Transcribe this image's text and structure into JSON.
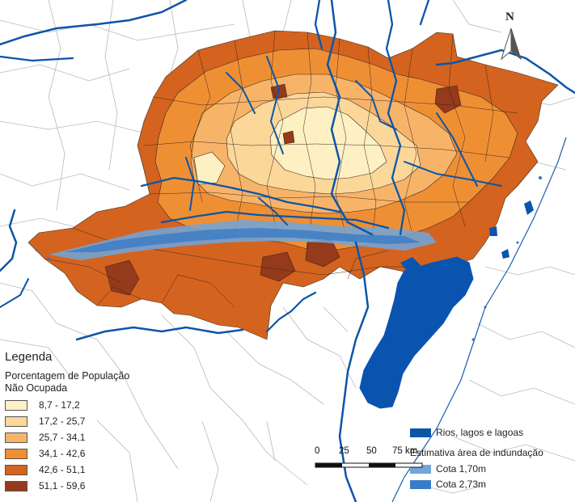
{
  "legend": {
    "title": "Legenda",
    "subtitle_line1": "Porcentagem de População",
    "subtitle_line2": "Não Ocupada",
    "classes": [
      {
        "label": "8,7 - 17,2",
        "color": "#fdf0c3"
      },
      {
        "label": "17,2 - 25,7",
        "color": "#fbd79a"
      },
      {
        "label": "25,7 - 34,1",
        "color": "#f7b469"
      },
      {
        "label": "34,1 - 42,6",
        "color": "#ef8f34"
      },
      {
        "label": "42,6 - 51,1",
        "color": "#d4631f"
      },
      {
        "label": "51,1 - 59,6",
        "color": "#953a1a"
      }
    ]
  },
  "water_legend": {
    "rivers_label": "Rios, lagos e lagoas",
    "rivers_color": "#0b55a8",
    "flood_title": "Estimativa área de indundação",
    "cota1_label": "Cota 1,70m",
    "cota1_color": "#6fa6dc",
    "cota2_label": "Cota 2,73m",
    "cota2_color": "#3a7cc7"
  },
  "scale_bar": {
    "labels": [
      "0",
      "25",
      "50",
      "75 km"
    ]
  },
  "north_arrow": {
    "label": "N"
  },
  "map": {
    "background_color": "#ffffff",
    "boundary_color": "#b5b5b5",
    "lagoon_color": "#0a54b0"
  }
}
